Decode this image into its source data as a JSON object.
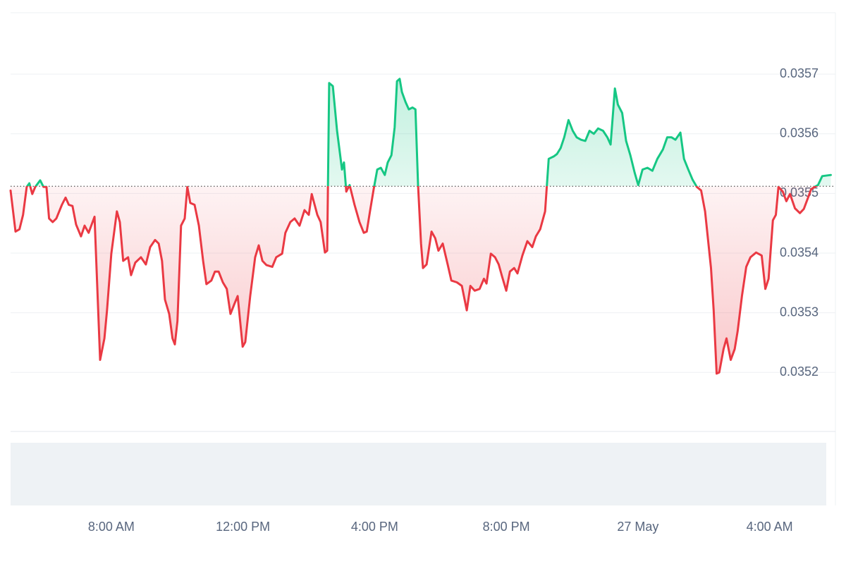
{
  "chart_data": {
    "type": "line",
    "x": [
      4.94,
      5.09,
      5.21,
      5.32,
      5.43,
      5.51,
      5.6,
      5.69,
      5.84,
      5.94,
      6.03,
      6.11,
      6.22,
      6.33,
      6.5,
      6.61,
      6.71,
      6.82,
      6.93,
      7.08,
      7.19,
      7.31,
      7.49,
      7.66,
      7.79,
      7.87,
      8.0,
      8.17,
      8.26,
      8.36,
      8.51,
      8.6,
      8.73,
      8.9,
      9.05,
      9.18,
      9.33,
      9.44,
      9.54,
      9.63,
      9.76,
      9.86,
      9.93,
      10.01,
      10.12,
      10.23,
      10.31,
      10.4,
      10.53,
      10.66,
      10.79,
      10.89,
      11.04,
      11.15,
      11.26,
      11.39,
      11.51,
      11.62,
      11.75,
      11.84,
      11.99,
      12.07,
      12.22,
      12.37,
      12.48,
      12.59,
      12.71,
      12.89,
      13.01,
      13.19,
      13.29,
      13.44,
      13.57,
      13.72,
      13.87,
      14.0,
      14.09,
      14.26,
      14.36,
      14.49,
      14.56,
      14.62,
      14.73,
      14.86,
      15.01,
      15.07,
      15.14,
      15.24,
      15.39,
      15.54,
      15.67,
      15.76,
      15.86,
      15.97,
      16.08,
      16.19,
      16.31,
      16.4,
      16.51,
      16.61,
      16.68,
      16.76,
      16.83,
      16.94,
      17.04,
      17.15,
      17.24,
      17.32,
      17.41,
      17.47,
      17.58,
      17.73,
      17.84,
      17.94,
      18.07,
      18.22,
      18.33,
      18.5,
      18.65,
      18.8,
      18.91,
      19.04,
      19.19,
      19.32,
      19.4,
      19.53,
      19.66,
      19.77,
      19.87,
      20.0,
      20.11,
      20.24,
      20.34,
      20.49,
      20.64,
      20.79,
      20.9,
      21.03,
      21.18,
      21.29,
      21.44,
      21.54,
      21.65,
      21.76,
      21.89,
      22.02,
      22.14,
      22.27,
      22.4,
      22.53,
      22.66,
      22.79,
      22.94,
      23.07,
      23.17,
      23.3,
      23.39,
      23.52,
      23.64,
      23.77,
      23.9,
      24.01,
      24.14,
      24.29,
      24.44,
      24.59,
      24.76,
      24.89,
      25.02,
      25.14,
      25.29,
      25.4,
      25.53,
      25.66,
      25.79,
      25.92,
      26.04,
      26.22,
      26.3,
      26.39,
      26.47,
      26.6,
      26.69,
      26.82,
      26.94,
      27.03,
      27.16,
      27.29,
      27.42,
      27.59,
      27.76,
      27.87,
      27.97,
      28.1,
      28.19,
      28.27,
      28.4,
      28.51,
      28.62,
      28.77,
      28.92,
      29.04,
      29.17,
      29.26,
      29.37,
      29.47,
      29.6,
      29.86
    ],
    "values": [
      0.035505,
      0.035436,
      0.03544,
      0.035464,
      0.035511,
      0.035517,
      0.035499,
      0.035511,
      0.035522,
      0.035511,
      0.035511,
      0.035458,
      0.035452,
      0.035458,
      0.035481,
      0.035493,
      0.035481,
      0.035479,
      0.035448,
      0.035428,
      0.035446,
      0.035434,
      0.035461,
      0.035221,
      0.035257,
      0.035304,
      0.035399,
      0.03547,
      0.035452,
      0.035387,
      0.035393,
      0.035363,
      0.035384,
      0.035393,
      0.035381,
      0.03541,
      0.035422,
      0.035416,
      0.035387,
      0.035322,
      0.035298,
      0.035257,
      0.035247,
      0.035286,
      0.035446,
      0.035458,
      0.035511,
      0.035484,
      0.035481,
      0.035446,
      0.035387,
      0.035348,
      0.035354,
      0.035369,
      0.035369,
      0.035351,
      0.03534,
      0.035298,
      0.035316,
      0.035328,
      0.035243,
      0.035251,
      0.035328,
      0.035393,
      0.035413,
      0.035387,
      0.03538,
      0.035377,
      0.035393,
      0.035399,
      0.035434,
      0.035452,
      0.035458,
      0.035446,
      0.035472,
      0.035464,
      0.035499,
      0.035464,
      0.035452,
      0.035401,
      0.035404,
      0.035685,
      0.03568,
      0.035605,
      0.03554,
      0.035552,
      0.035503,
      0.035514,
      0.035481,
      0.035452,
      0.035434,
      0.035436,
      0.03547,
      0.035507,
      0.03554,
      0.035543,
      0.035531,
      0.035552,
      0.035564,
      0.035611,
      0.035688,
      0.035692,
      0.03567,
      0.035653,
      0.035641,
      0.035644,
      0.035641,
      0.035514,
      0.035416,
      0.035375,
      0.035381,
      0.035436,
      0.035425,
      0.035404,
      0.035416,
      0.035381,
      0.035354,
      0.035351,
      0.035345,
      0.035304,
      0.035345,
      0.035337,
      0.03534,
      0.035357,
      0.035349,
      0.035399,
      0.035393,
      0.035381,
      0.035361,
      0.035337,
      0.035369,
      0.035375,
      0.035366,
      0.035396,
      0.03542,
      0.03541,
      0.035428,
      0.03544,
      0.03547,
      0.035558,
      0.035562,
      0.035566,
      0.035576,
      0.035594,
      0.035623,
      0.035605,
      0.035594,
      0.03559,
      0.035588,
      0.035605,
      0.0356,
      0.035609,
      0.035605,
      0.035594,
      0.035582,
      0.035676,
      0.035649,
      0.035635,
      0.035588,
      0.035564,
      0.035535,
      0.035514,
      0.03554,
      0.035543,
      0.035538,
      0.035558,
      0.035574,
      0.035594,
      0.035594,
      0.03559,
      0.035602,
      0.035558,
      0.03554,
      0.035523,
      0.035511,
      0.035505,
      0.03547,
      0.035375,
      0.035304,
      0.035198,
      0.0352,
      0.035239,
      0.035257,
      0.035221,
      0.035239,
      0.035269,
      0.035328,
      0.035377,
      0.035393,
      0.035401,
      0.035396,
      0.03534,
      0.035357,
      0.035455,
      0.035464,
      0.035511,
      0.035503,
      0.035487,
      0.035499,
      0.035475,
      0.035467,
      0.035474,
      0.035493,
      0.035507,
      0.035511,
      0.035514,
      0.035529,
      0.035531
    ],
    "baseline": 0.035512,
    "up_color": "#16c784",
    "down_color": "#ea3943",
    "xlim": [
      4.94,
      30.0
    ],
    "xticks": [
      {
        "value": 8,
        "label": "8:00 AM"
      },
      {
        "value": 12,
        "label": "12:00 PM"
      },
      {
        "value": 16,
        "label": "4:00 PM"
      },
      {
        "value": 20,
        "label": "8:00 PM"
      },
      {
        "value": 24,
        "label": "27 May"
      },
      {
        "value": 28,
        "label": "4:00 AM"
      }
    ],
    "ylim": [
      0.035101,
      0.035803
    ],
    "yticks": [
      0.0352,
      0.0353,
      0.0354,
      0.0355,
      0.0356,
      0.0357
    ],
    "grid": true
  }
}
